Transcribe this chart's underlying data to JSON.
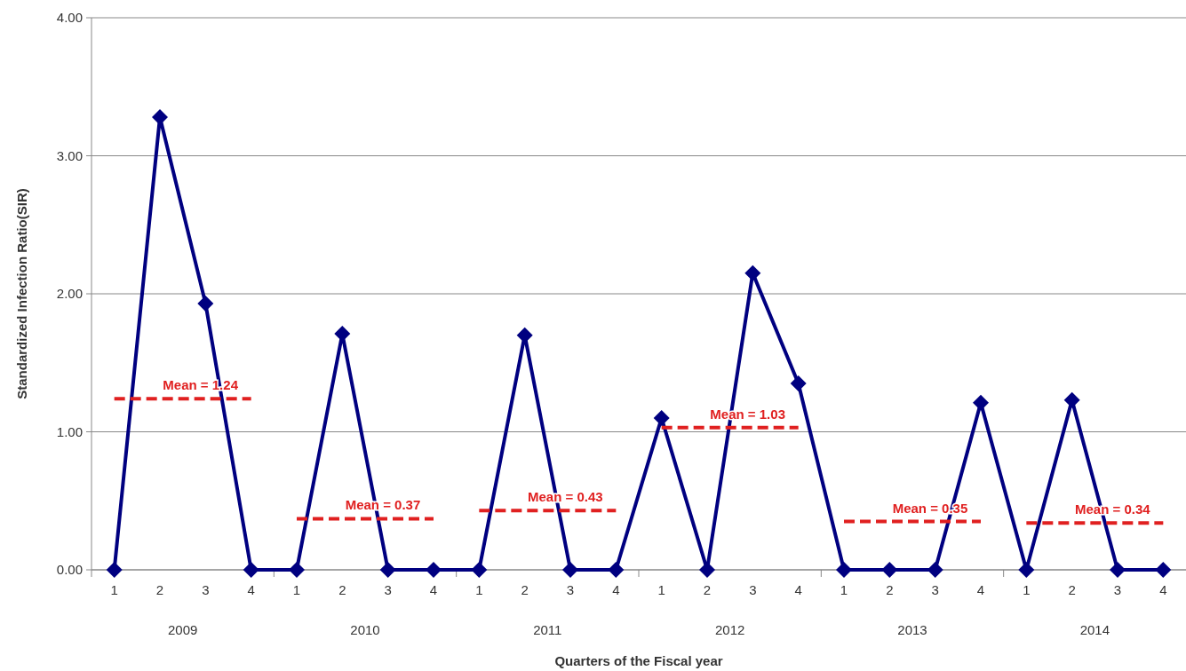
{
  "chart_data": {
    "type": "line",
    "xlabel": "Quarters of the Fiscal year",
    "ylabel": "Standardized Infection Ratio(SIR)",
    "categories": [
      "1",
      "2",
      "3",
      "4",
      "1",
      "2",
      "3",
      "4",
      "1",
      "2",
      "3",
      "4",
      "1",
      "2",
      "3",
      "4",
      "1",
      "2",
      "3",
      "4",
      "1",
      "2",
      "3",
      "4"
    ],
    "annotations": [
      "2009",
      "2010",
      "2011",
      "2012",
      "2013",
      "2014"
    ],
    "series": [
      {
        "color": "#000080",
        "marker": "diamond",
        "line_style": "solid",
        "values": [
          0,
          3.28,
          1.93,
          0,
          0,
          1.71,
          0,
          0,
          0,
          1.7,
          0,
          0,
          1.1,
          0,
          2.15,
          1.35,
          0,
          0,
          0,
          1.21,
          0,
          1.23,
          0,
          0
        ]
      },
      {
        "name": "Mean = 1.24",
        "color": "#e02020",
        "marker": "none",
        "line_style": "dashed",
        "values": [
          1.24,
          1.24,
          1.24,
          1.24,
          null,
          null,
          null,
          null,
          null,
          null,
          null,
          null,
          null,
          null,
          null,
          null,
          null,
          null,
          null,
          null,
          null,
          null,
          null,
          null
        ]
      },
      {
        "name": "Mean = 0.37",
        "color": "#e02020",
        "marker": "none",
        "line_style": "dashed",
        "values": [
          null,
          null,
          null,
          null,
          0.37,
          0.37,
          0.37,
          0.37,
          null,
          null,
          null,
          null,
          null,
          null,
          null,
          null,
          null,
          null,
          null,
          null,
          null,
          null,
          null,
          null
        ]
      },
      {
        "name": "Mean = 0.43",
        "color": "#e02020",
        "marker": "none",
        "line_style": "dashed",
        "values": [
          null,
          null,
          null,
          null,
          null,
          null,
          null,
          null,
          0.43,
          0.43,
          0.43,
          0.43,
          null,
          null,
          null,
          null,
          null,
          null,
          null,
          null,
          null,
          null,
          null,
          null
        ]
      },
      {
        "name": "Mean = 1.03",
        "color": "#e02020",
        "marker": "none",
        "line_style": "dashed",
        "values": [
          null,
          null,
          null,
          null,
          null,
          null,
          null,
          null,
          null,
          null,
          null,
          null,
          1.03,
          1.03,
          1.03,
          1.03,
          null,
          null,
          null,
          null,
          null,
          null,
          null,
          null
        ]
      },
      {
        "name": "Mean = 0.35",
        "color": "#e02020",
        "marker": "none",
        "line_style": "dashed",
        "values": [
          null,
          null,
          null,
          null,
          null,
          null,
          null,
          null,
          null,
          null,
          null,
          null,
          null,
          null,
          null,
          null,
          0.35,
          0.35,
          0.35,
          0.35,
          null,
          null,
          null,
          null
        ]
      },
      {
        "name": "Mean = 0.34",
        "color": "#e02020",
        "marker": "none",
        "line_style": "dashed",
        "values": [
          null,
          null,
          null,
          null,
          null,
          null,
          null,
          null,
          null,
          null,
          null,
          null,
          null,
          null,
          null,
          null,
          null,
          null,
          null,
          null,
          0.34,
          0.34,
          0.34,
          0.34
        ]
      }
    ],
    "ylim": [
      0,
      4
    ],
    "yticks": [
      {
        "value": 0,
        "label": "0.00"
      },
      {
        "value": 1,
        "label": "1.00"
      },
      {
        "value": 2,
        "label": "2.00"
      },
      {
        "value": 3,
        "label": "3.00"
      },
      {
        "value": 4,
        "label": "4.00"
      }
    ],
    "grid": "y"
  }
}
